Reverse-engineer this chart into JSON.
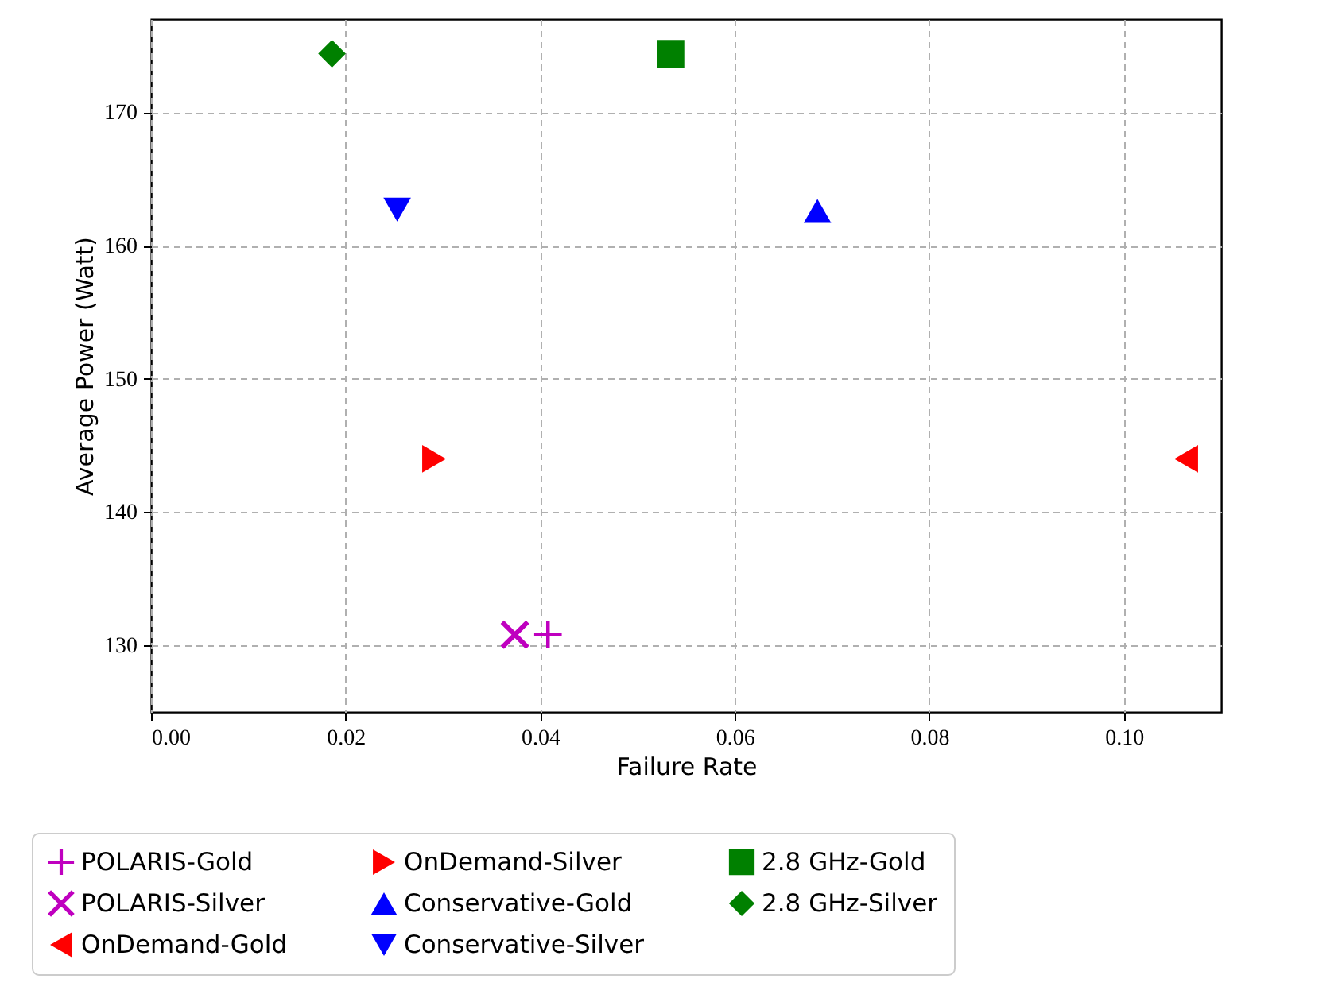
{
  "chart_data": {
    "type": "scatter",
    "xlabel": "Failure Rate",
    "ylabel": "Average Power (Watt)",
    "xlim": [
      0,
      0.11
    ],
    "ylim": [
      125,
      177
    ],
    "xticks": [
      {
        "value": 0,
        "label": "0.00"
      },
      {
        "value": 0.02,
        "label": "0.02"
      },
      {
        "value": 0.04,
        "label": "0.04"
      },
      {
        "value": 0.06,
        "label": "0.06"
      },
      {
        "value": 0.08,
        "label": "0.08"
      },
      {
        "value": 0.1,
        "label": "0.10"
      }
    ],
    "yticks": [
      130,
      140,
      150,
      160,
      170
    ],
    "grid": true,
    "legend": "bottom",
    "series": [
      {
        "name": "POLARIS-Gold",
        "color": "#bf00bf",
        "marker": "plus",
        "x": [
          0.0408
        ],
        "values": [
          130.8
        ]
      },
      {
        "name": "POLARIS-Silver",
        "color": "#bf00bf",
        "marker": "x",
        "x": [
          0.0374
        ],
        "values": [
          130.8
        ]
      },
      {
        "name": "OnDemand-Gold",
        "color": "#ff0000",
        "marker": "triangle-left",
        "x": [
          0.1064
        ],
        "values": [
          144.0
        ]
      },
      {
        "name": "OnDemand-Silver",
        "color": "#ff0000",
        "marker": "triangle-right",
        "x": [
          0.0291
        ],
        "values": [
          144.0
        ]
      },
      {
        "name": "Conservative-Gold",
        "color": "#0000ff",
        "marker": "triangle-up",
        "x": [
          0.0685
        ],
        "values": [
          162.6
        ]
      },
      {
        "name": "Conservative-Silver",
        "color": "#0000ff",
        "marker": "triangle-down",
        "x": [
          0.0253
        ],
        "values": [
          162.7
        ]
      },
      {
        "name": "2.8 GHz-Gold",
        "color": "#008000",
        "marker": "square",
        "x": [
          0.0534
        ],
        "values": [
          174.4
        ]
      },
      {
        "name": "2.8 GHz-Silver",
        "color": "#008000",
        "marker": "diamond",
        "x": [
          0.0186
        ],
        "values": [
          174.4
        ]
      }
    ]
  }
}
